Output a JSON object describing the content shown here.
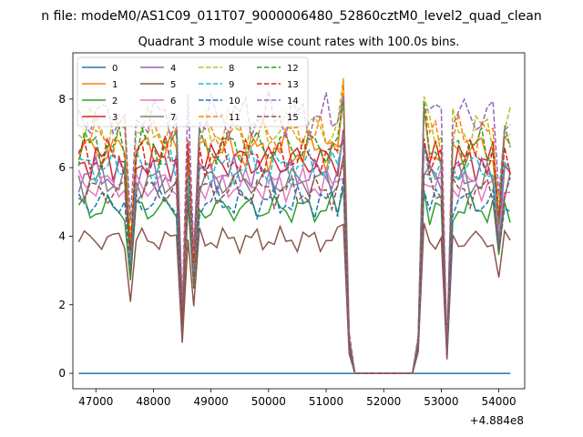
{
  "figure": {
    "suptitle": "n file: modeM0/AS1C09_011T07_9000006480_52860cztM0_level2_quad_clean",
    "title": "Quadrant 3 module wise count rates with 100.0s bins."
  },
  "chart_data": {
    "type": "line",
    "title": "Quadrant 3 module wise count rates with 100.0s bins.",
    "xlabel": "",
    "ylabel": "",
    "x_offset_label": "+4.884e8",
    "xlim": [
      46600,
      54450
    ],
    "ylim": [
      -0.45,
      9.35
    ],
    "xticks": [
      47000,
      48000,
      49000,
      50000,
      51000,
      52000,
      53000,
      54000
    ],
    "xtick_labels": [
      "47000",
      "48000",
      "49000",
      "50000",
      "51000",
      "52000",
      "53000",
      "54000"
    ],
    "yticks": [
      0,
      2,
      4,
      6,
      8
    ],
    "ytick_labels": [
      "0",
      "2",
      "4",
      "6",
      "8"
    ],
    "grid": false,
    "legend_position": "top-left",
    "legend_columns": 4,
    "series": [
      {
        "name": "0",
        "color": "#1f77b4",
        "dash": "solid",
        "base": 0.0
      },
      {
        "name": "1",
        "color": "#ff7f0e",
        "dash": "solid",
        "base": 6.5
      },
      {
        "name": "2",
        "color": "#2ca02c",
        "dash": "solid",
        "base": 4.8
      },
      {
        "name": "3",
        "color": "#d62728",
        "dash": "solid",
        "base": 6.2
      },
      {
        "name": "4",
        "color": "#9467bd",
        "dash": "solid",
        "base": 5.8
      },
      {
        "name": "5",
        "color": "#8c564b",
        "dash": "solid",
        "base": 3.9
      },
      {
        "name": "6",
        "color": "#e377c2",
        "dash": "solid",
        "base": 5.5
      },
      {
        "name": "7",
        "color": "#7f7f7f",
        "dash": "solid",
        "base": 5.6
      },
      {
        "name": "8",
        "color": "#bcbd22",
        "dash": "dashed",
        "base": 7.1
      },
      {
        "name": "9",
        "color": "#17becf",
        "dash": "dashed",
        "base": 6.0
      },
      {
        "name": "10",
        "color": "#1f77b4",
        "dash": "dashed",
        "base": 5.0
      },
      {
        "name": "11",
        "color": "#ff7f0e",
        "dash": "dashed",
        "base": 6.9
      },
      {
        "name": "12",
        "color": "#2ca02c",
        "dash": "dashed",
        "base": 6.6
      },
      {
        "name": "13",
        "color": "#d62728",
        "dash": "dashed",
        "base": 6.3
      },
      {
        "name": "14",
        "color": "#9467bd",
        "dash": "dashed",
        "base": 7.5
      },
      {
        "name": "15",
        "color": "#8c564b",
        "dash": "dashed",
        "base": 5.3
      }
    ],
    "time_grid": {
      "start": 46700,
      "stop": 54200,
      "step": 100
    },
    "gap": {
      "start": 51500,
      "stop": 52500
    },
    "dips": [
      {
        "x": 47600,
        "factor": 0.55
      },
      {
        "x": 48500,
        "factor": 0.25
      },
      {
        "x": 48700,
        "factor": 0.5
      },
      {
        "x": 53100,
        "factor": 0.1
      },
      {
        "x": 54000,
        "factor": 0.7
      }
    ],
    "peaks": [
      {
        "x": 51300,
        "factor": 1.15
      },
      {
        "x": 52700,
        "factor": 1.1
      }
    ]
  }
}
